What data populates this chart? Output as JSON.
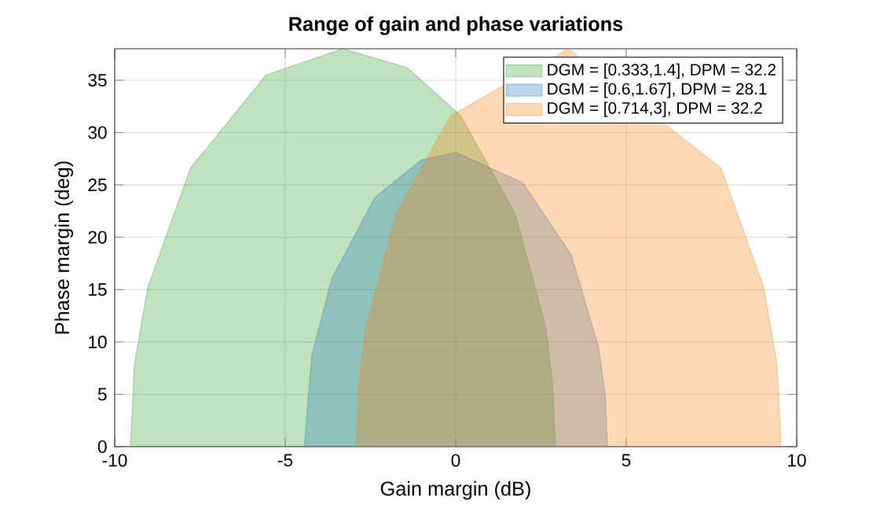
{
  "chart_data": {
    "type": "area",
    "title": "Range of gain and phase variations",
    "xlabel": "Gain margin (dB)",
    "ylabel": "Phase margin (deg)",
    "series": [
      {
        "name": "DGM = [0.333,1.4], DPM = 32.2",
        "color": "#2ca02c",
        "x": [
          2.92,
          2.85,
          2.64,
          1.75,
          0.15,
          -1.43,
          -3.31,
          -5.56,
          -7.78,
          -9.03,
          -9.42,
          -9.54
        ],
        "values": [
          0,
          5.7,
          11.4,
          22.2,
          31.6,
          36.2,
          38,
          35.5,
          26.6,
          15.2,
          7.9,
          0
        ]
      },
      {
        "name": "DGM = [0.6,1.67], DPM = 28.1",
        "color": "#1f77b4",
        "x": [
          4.45,
          4.39,
          4.19,
          3.39,
          1.97,
          0.01,
          -1.0,
          -2.37,
          -3.63,
          -4.22,
          -4.44
        ],
        "values": [
          0,
          4.8,
          9.5,
          18.3,
          25.2,
          28.1,
          27.4,
          23.8,
          16.1,
          8.7,
          0
        ]
      },
      {
        "name": "DGM = [0.714,3], DPM = 32.2",
        "color": "#ff7f0e",
        "x": [
          -2.92,
          -2.85,
          -2.64,
          -1.75,
          -0.15,
          1.43,
          3.31,
          5.56,
          7.78,
          9.03,
          9.42,
          9.54
        ],
        "values": [
          0,
          5.7,
          11.4,
          22.2,
          31.6,
          null,
          38,
          null,
          26.6,
          15.2,
          7.9,
          0
        ]
      }
    ],
    "xlim": [
      -10,
      10
    ],
    "ylim": [
      0,
      38
    ],
    "xticks": [
      -10,
      -5,
      0,
      5,
      10
    ],
    "yticks": [
      0,
      5,
      10,
      15,
      20,
      25,
      30,
      35
    ],
    "grid": true,
    "legend": "top right"
  }
}
